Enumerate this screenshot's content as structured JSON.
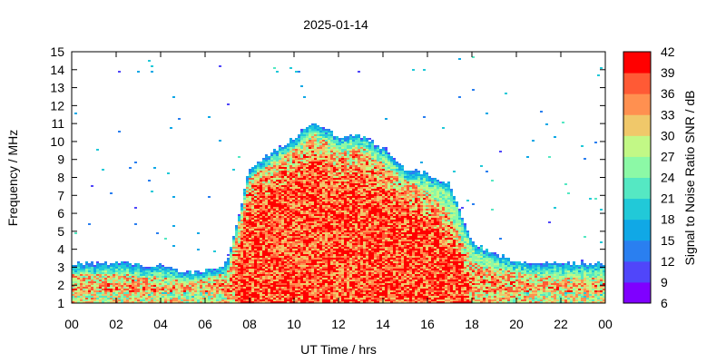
{
  "chart_data": {
    "type": "heatmap",
    "title": "2025-01-14",
    "xlabel": "UT Time / hrs",
    "ylabel": "Frequency / MHz",
    "colorbar_label": "Signal to Noise Ratio SNR / dB",
    "xlim": [
      0,
      24
    ],
    "ylim": [
      1,
      15
    ],
    "x_ticks": [
      "00",
      "02",
      "04",
      "06",
      "08",
      "10",
      "12",
      "14",
      "16",
      "18",
      "20",
      "22",
      "00"
    ],
    "y_ticks": [
      "1",
      "2",
      "3",
      "4",
      "5",
      "6",
      "7",
      "8",
      "9",
      "10",
      "11",
      "12",
      "13",
      "14",
      "15"
    ],
    "color_range": [
      6,
      42
    ],
    "colorbar_ticks": [
      "6",
      "9",
      "12",
      "15",
      "18",
      "21",
      "24",
      "27",
      "30",
      "33",
      "36",
      "39",
      "42"
    ],
    "colorbar_colors": [
      "#7f00ff",
      "#5046fa",
      "#2a7ff0",
      "#10a8e6",
      "#21c9d8",
      "#55e8c3",
      "#8cf9a6",
      "#c2f886",
      "#f0c86a",
      "#ff9050",
      "#ff5a35",
      "#ff0000"
    ],
    "grid": false,
    "legend": "colorbar-right",
    "envelope": {
      "comment_free_note": "upper frequency (MHz) of the main echo band vs UT hour",
      "hours": [
        0,
        2,
        4,
        5,
        6,
        7,
        8,
        10,
        11,
        12,
        13,
        14,
        15,
        16,
        17,
        18,
        19,
        20,
        22,
        23,
        24
      ],
      "top_mhz": [
        3.2,
        3.2,
        3.1,
        2.7,
        2.8,
        3.2,
        8.5,
        10.2,
        11.1,
        10.2,
        10.4,
        9.6,
        8.5,
        8.2,
        7.6,
        4.4,
        3.8,
        3.3,
        3.2,
        3.2,
        3.2
      ],
      "core_top_mhz": [
        2.6,
        2.6,
        2.5,
        2.2,
        2.3,
        2.7,
        8.0,
        9.6,
        10.4,
        9.5,
        9.7,
        8.8,
        7.9,
        7.2,
        6.0,
        3.3,
        3.0,
        2.7,
        2.4,
        2.4,
        2.4
      ],
      "bottom_mhz": 1.0
    }
  }
}
